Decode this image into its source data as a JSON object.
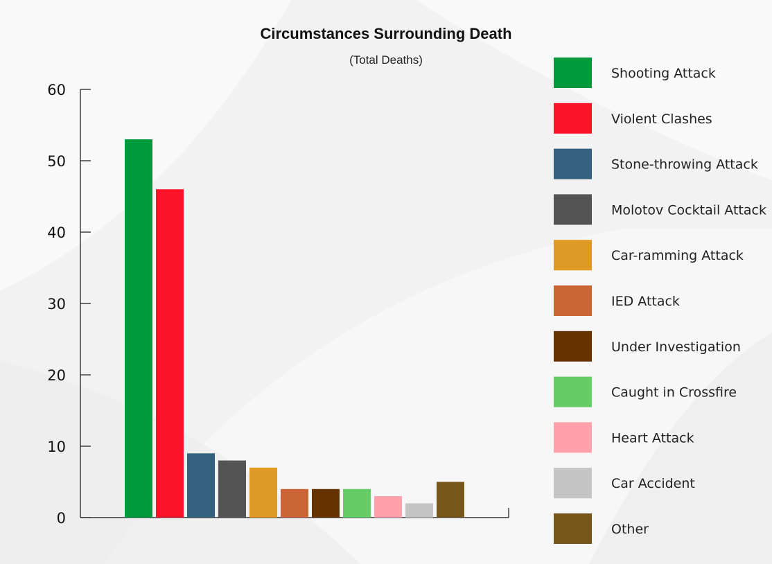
{
  "chart_data": {
    "type": "bar",
    "title": "Circumstances Surrounding Death",
    "subtitle": "(Total Deaths)",
    "xlabel": "",
    "ylabel": "",
    "ylim": [
      0,
      60
    ],
    "yticks": [
      "0",
      "10",
      "20",
      "30",
      "40",
      "50",
      "60"
    ],
    "grid": false,
    "legend_position": "right",
    "categories": [
      "Shooting Attack",
      "Violent Clashes",
      "Stone-throwing Attack",
      "Molotov Cocktail Attack",
      "Car-ramming Attack",
      "IED Attack",
      "Under Investigation",
      "Caught in Crossfire",
      "Heart Attack",
      "Car Accident",
      "Other"
    ],
    "values": [
      53,
      46,
      9,
      8,
      7,
      4,
      4,
      4,
      3,
      2,
      5
    ],
    "colors": [
      "#009a3d",
      "#fe1428",
      "#34617e",
      "#545454",
      "#de9a25",
      "#cb6535",
      "#663300",
      "#66cc66",
      "#ffa1ab",
      "#c5c5c5",
      "#77561b"
    ]
  }
}
